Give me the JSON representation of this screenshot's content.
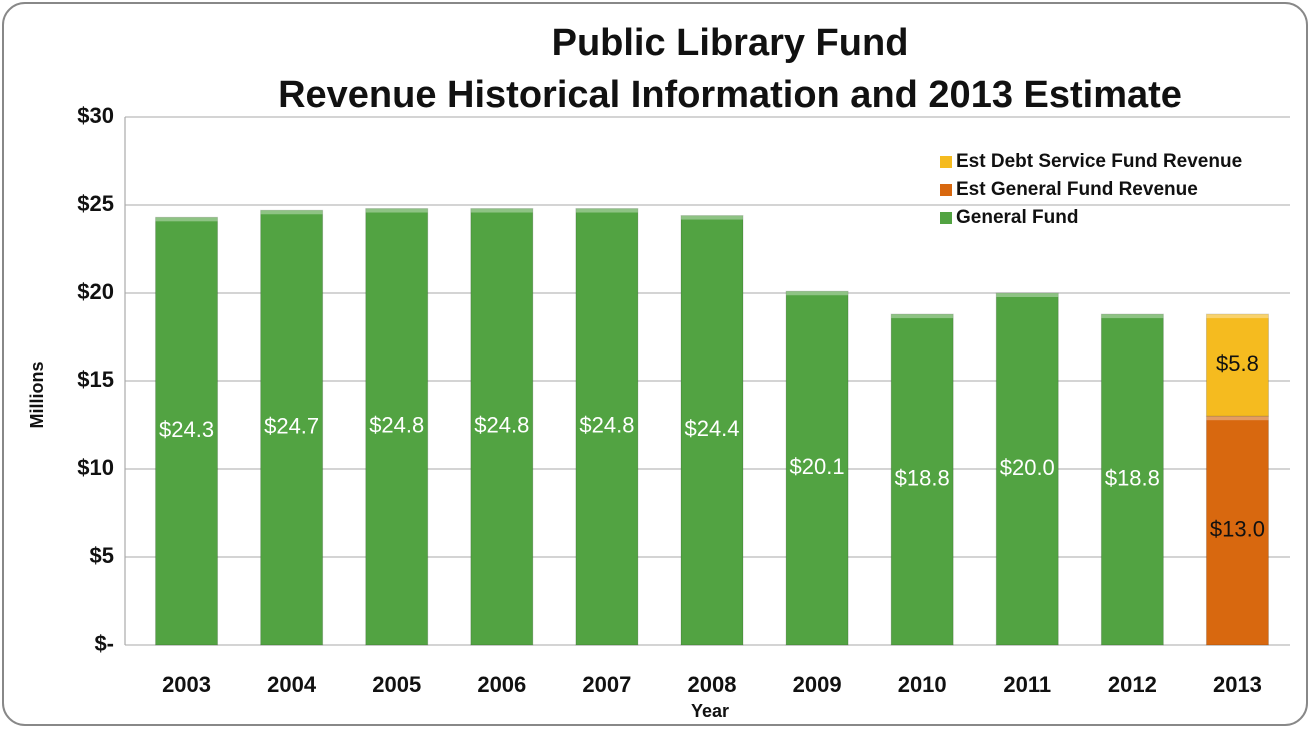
{
  "chart_data": {
    "type": "stacked_bar",
    "title": [
      "Public Library Fund",
      "Revenue Historical Information and 2013 Estimate"
    ],
    "x_label": "Year",
    "y_label": "Millions",
    "categories": [
      "2003",
      "2004",
      "2005",
      "2006",
      "2007",
      "2008",
      "2009",
      "2010",
      "2011",
      "2012",
      "2013"
    ],
    "series": [
      {
        "name": "General Fund",
        "color": "#52a342",
        "label_color": "#ffffff",
        "values": [
          24.3,
          24.7,
          24.8,
          24.8,
          24.8,
          24.4,
          20.1,
          18.8,
          20.0,
          18.8,
          null
        ],
        "value_labels": [
          "$24.3",
          "$24.7",
          "$24.8",
          "$24.8",
          "$24.8",
          "$24.4",
          "$20.1",
          "$18.8",
          "$20.0",
          "$18.8",
          null
        ]
      },
      {
        "name": "Est General Fund Revenue",
        "color": "#d8680f",
        "label_color": "#111111",
        "values": [
          null,
          null,
          null,
          null,
          null,
          null,
          null,
          null,
          null,
          null,
          13.0
        ],
        "value_labels": [
          null,
          null,
          null,
          null,
          null,
          null,
          null,
          null,
          null,
          null,
          "$13.0"
        ]
      },
      {
        "name": "Est Debt Service Fund Revenue",
        "color": "#f5bb1f",
        "label_color": "#111111",
        "values": [
          null,
          null,
          null,
          null,
          null,
          null,
          null,
          null,
          null,
          null,
          5.8
        ],
        "value_labels": [
          null,
          null,
          null,
          null,
          null,
          null,
          null,
          null,
          null,
          null,
          "$5.8"
        ]
      }
    ],
    "ylim": [
      0,
      30
    ],
    "yticks": [
      {
        "value": 0,
        "label": "$-"
      },
      {
        "value": 5,
        "label": "$5"
      },
      {
        "value": 10,
        "label": "$10"
      },
      {
        "value": 15,
        "label": "$15"
      },
      {
        "value": 20,
        "label": "$20"
      },
      {
        "value": 25,
        "label": "$25"
      },
      {
        "value": 30,
        "label": "$30"
      }
    ],
    "grid": true,
    "legend": "top-right"
  }
}
